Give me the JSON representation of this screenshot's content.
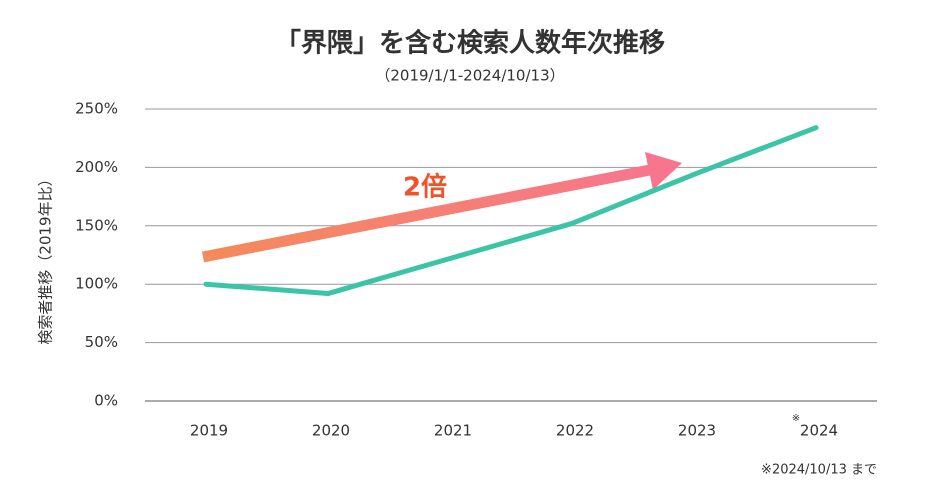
{
  "chart_data": {
    "type": "line",
    "title": "「界隈」を含む検索人数年次推移",
    "subtitle": "（2019/1/1-2024/10/13）",
    "y_label": "検索者推移（2019年比）",
    "categories": [
      "2019",
      "2020",
      "2021",
      "2022",
      "2023",
      "2024"
    ],
    "category_marker": {
      "index": 5,
      "text": "※"
    },
    "series": [
      {
        "name": "検索人数",
        "color": "#3cc4a6",
        "values": [
          100,
          92,
          122,
          152,
          194,
          234
        ]
      }
    ],
    "ylim": [
      0,
      250
    ],
    "yticks": [
      {
        "value": 0,
        "label": "0%"
      },
      {
        "value": 50,
        "label": "50%"
      },
      {
        "value": 100,
        "label": "100%"
      },
      {
        "value": 150,
        "label": "150%"
      },
      {
        "value": 200,
        "label": "200%"
      },
      {
        "value": 250,
        "label": "250%"
      }
    ],
    "grid": true,
    "annotation": "2倍",
    "note": "※2024/10/13 まで"
  }
}
